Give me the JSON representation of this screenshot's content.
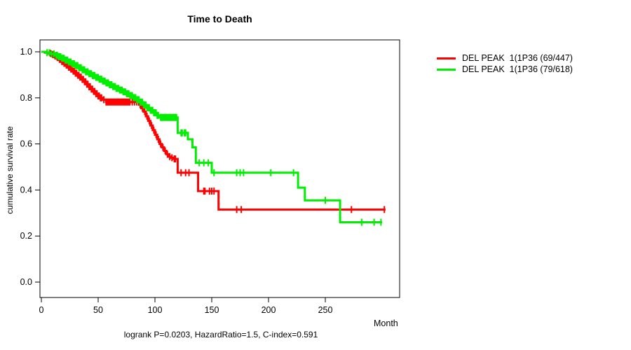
{
  "figure": {
    "title": "Time to Death",
    "x_axis_label": "Month",
    "y_axis_label": "cumulative survival rate",
    "annotation": "logrank P=0.0203, HazardRatio=1.5, C-index=0.591"
  },
  "chart_data": {
    "type": "line",
    "subtype": "kaplan-meier-step-survival",
    "title": "Time to Death",
    "xlabel": "Month",
    "ylabel": "cumulative survival rate",
    "xlim": [
      0,
      315
    ],
    "ylim": [
      0.0,
      1.0
    ],
    "x_ticks": [
      0,
      50,
      100,
      150,
      200,
      250
    ],
    "y_ticks": [
      {
        "label": "0.0",
        "value": 0.0
      },
      {
        "label": "0.2",
        "value": 0.2
      },
      {
        "label": "0.4",
        "value": 0.4
      },
      {
        "label": "0.6",
        "value": 0.6
      },
      {
        "label": "0.8",
        "value": 0.8
      },
      {
        "label": "1.0",
        "value": 1.0
      }
    ],
    "grid": false,
    "legend_position": "right-outside",
    "annotation": "logrank P=0.0203, HazardRatio=1.5, C-index=0.591",
    "series": [
      {
        "name": "DEL PEAK  1(1P36 (69/447)",
        "color": "#ff0000",
        "events_over_n": "69/447",
        "end_month": 303,
        "steps": [
          [
            0,
            1.0
          ],
          [
            3,
            0.997
          ],
          [
            6,
            0.993
          ],
          [
            9,
            0.988
          ],
          [
            12,
            0.982
          ],
          [
            14,
            0.975
          ],
          [
            16,
            0.967
          ],
          [
            18,
            0.958
          ],
          [
            20,
            0.95
          ],
          [
            22,
            0.942
          ],
          [
            24,
            0.933
          ],
          [
            26,
            0.925
          ],
          [
            28,
            0.916
          ],
          [
            30,
            0.907
          ],
          [
            32,
            0.898
          ],
          [
            34,
            0.89
          ],
          [
            36,
            0.88
          ],
          [
            38,
            0.87
          ],
          [
            40,
            0.859
          ],
          [
            42,
            0.848
          ],
          [
            44,
            0.838
          ],
          [
            46,
            0.828
          ],
          [
            48,
            0.818
          ],
          [
            50,
            0.808
          ],
          [
            52,
            0.8
          ],
          [
            54,
            0.792
          ],
          [
            57,
            0.782
          ],
          [
            86,
            0.77
          ],
          [
            88,
            0.755
          ],
          [
            90,
            0.74
          ],
          [
            92,
            0.72
          ],
          [
            94,
            0.7
          ],
          [
            96,
            0.68
          ],
          [
            98,
            0.66
          ],
          [
            100,
            0.64
          ],
          [
            102,
            0.62
          ],
          [
            104,
            0.6
          ],
          [
            106,
            0.585
          ],
          [
            108,
            0.57
          ],
          [
            110,
            0.555
          ],
          [
            112,
            0.545
          ],
          [
            114,
            0.54
          ],
          [
            116,
            0.535
          ],
          [
            120,
            0.475
          ],
          [
            138,
            0.395
          ],
          [
            156,
            0.315
          ]
        ],
        "censor_months": [
          8,
          10,
          11,
          12,
          13,
          14,
          15,
          16,
          17,
          18,
          19,
          20,
          21,
          22,
          23,
          24,
          25,
          26,
          27,
          28,
          29,
          30,
          31,
          32,
          33,
          34,
          35,
          36,
          37,
          38,
          39,
          40,
          41,
          42,
          43,
          44,
          45,
          46,
          47,
          48,
          49,
          50,
          51,
          52,
          53,
          55,
          57,
          58,
          59,
          60,
          61,
          62,
          63,
          64,
          65,
          66,
          67,
          68,
          69,
          70,
          71,
          72,
          73,
          74,
          75,
          76,
          77,
          78,
          80,
          82,
          84,
          87,
          89,
          91,
          93,
          95,
          97,
          99,
          101,
          103,
          105,
          107,
          109,
          111,
          113,
          115,
          117,
          118,
          123,
          127,
          130,
          143,
          144,
          148,
          150,
          152,
          172,
          176,
          273,
          302
        ]
      },
      {
        "name": "DEL PEAK  1(1P36 (79/618)",
        "color": "#00ee00",
        "events_over_n": "79/618",
        "end_month": 300,
        "steps": [
          [
            0,
            1.0
          ],
          [
            4,
            0.996
          ],
          [
            8,
            0.991
          ],
          [
            12,
            0.985
          ],
          [
            15,
            0.979
          ],
          [
            18,
            0.972
          ],
          [
            21,
            0.964
          ],
          [
            24,
            0.956
          ],
          [
            27,
            0.948
          ],
          [
            30,
            0.94
          ],
          [
            33,
            0.931
          ],
          [
            36,
            0.922
          ],
          [
            39,
            0.913
          ],
          [
            42,
            0.905
          ],
          [
            45,
            0.897
          ],
          [
            48,
            0.889
          ],
          [
            51,
            0.881
          ],
          [
            54,
            0.873
          ],
          [
            57,
            0.865
          ],
          [
            60,
            0.857
          ],
          [
            63,
            0.849
          ],
          [
            66,
            0.841
          ],
          [
            69,
            0.834
          ],
          [
            72,
            0.826
          ],
          [
            75,
            0.818
          ],
          [
            78,
            0.81
          ],
          [
            81,
            0.801
          ],
          [
            84,
            0.792
          ],
          [
            87,
            0.781
          ],
          [
            90,
            0.769
          ],
          [
            93,
            0.757
          ],
          [
            96,
            0.746
          ],
          [
            99,
            0.735
          ],
          [
            102,
            0.724
          ],
          [
            104,
            0.715
          ],
          [
            120,
            0.648
          ],
          [
            129,
            0.62
          ],
          [
            133,
            0.585
          ],
          [
            136,
            0.518
          ],
          [
            150,
            0.475
          ],
          [
            226,
            0.41
          ],
          [
            232,
            0.355
          ],
          [
            263,
            0.26
          ]
        ],
        "censor_months": [
          5,
          7,
          9,
          11,
          13,
          14,
          15,
          16,
          17,
          18,
          19,
          20,
          21,
          22,
          23,
          24,
          25,
          26,
          27,
          28,
          29,
          30,
          31,
          32,
          33,
          34,
          35,
          36,
          37,
          38,
          39,
          40,
          41,
          42,
          43,
          44,
          45,
          46,
          47,
          48,
          49,
          50,
          51,
          52,
          53,
          54,
          55,
          56,
          57,
          58,
          59,
          60,
          61,
          62,
          63,
          64,
          65,
          66,
          67,
          68,
          69,
          70,
          71,
          72,
          73,
          74,
          75,
          76,
          77,
          78,
          79,
          80,
          81,
          82,
          83,
          84,
          85,
          86,
          87,
          88,
          89,
          90,
          91,
          92,
          93,
          94,
          95,
          96,
          97,
          98,
          99,
          100,
          101,
          102,
          103,
          105,
          106,
          107,
          108,
          109,
          110,
          111,
          112,
          113,
          114,
          115,
          116,
          117,
          118,
          119,
          123,
          124,
          126,
          127,
          139,
          143,
          147,
          152,
          172,
          175,
          178,
          202,
          222,
          250,
          282,
          293,
          299
        ]
      }
    ]
  }
}
